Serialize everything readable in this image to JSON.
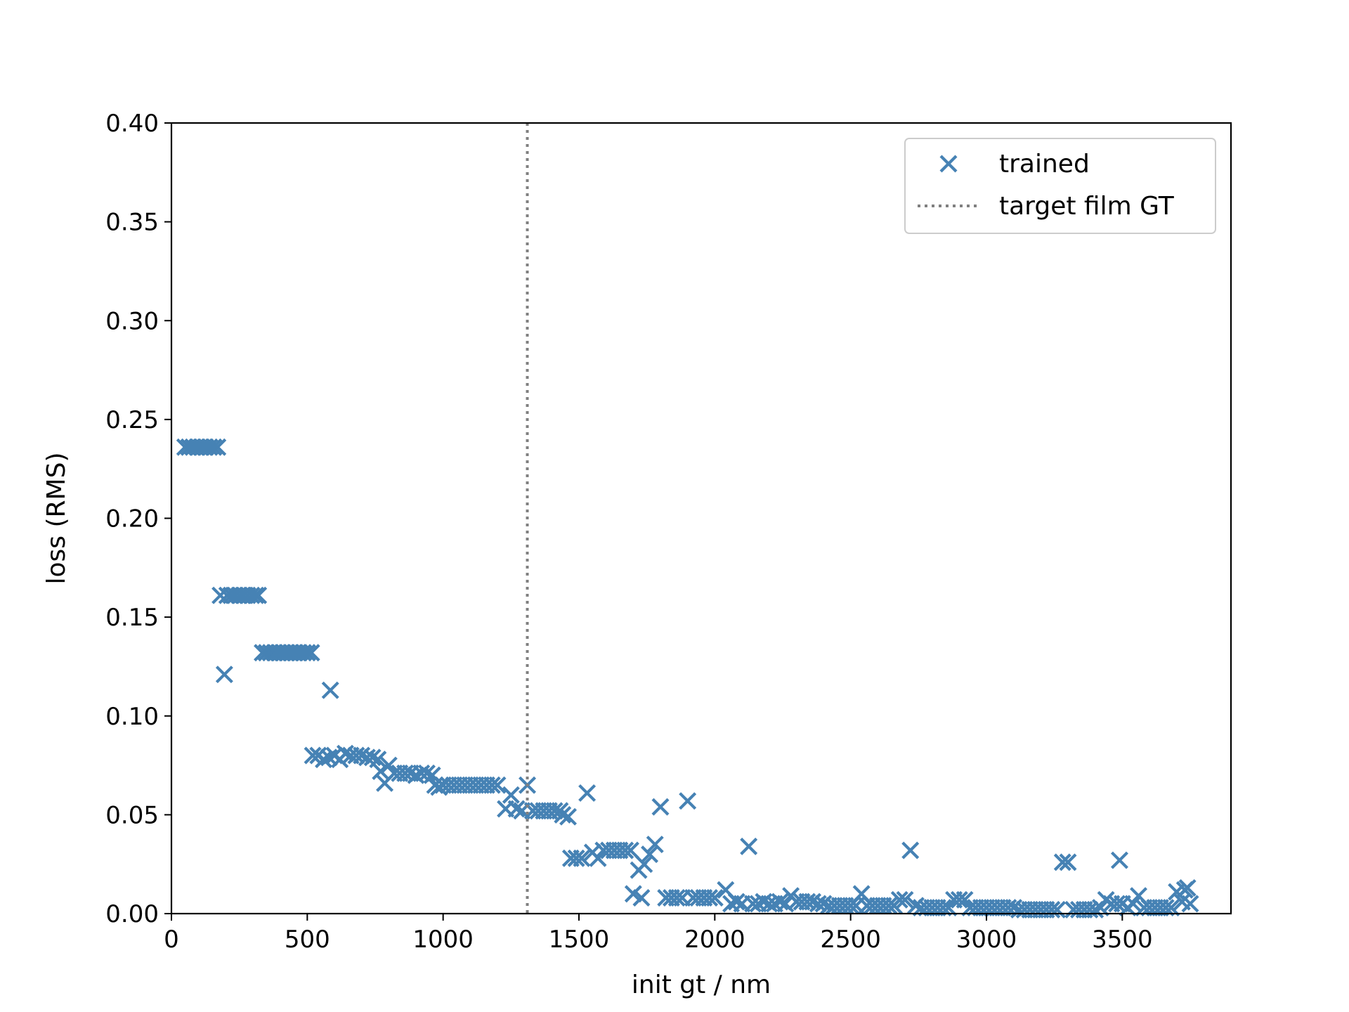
{
  "chart_data": {
    "type": "scatter",
    "title": "",
    "xlabel": "init gt / nm",
    "ylabel": "loss (RMS)",
    "xlim": [
      0,
      3900
    ],
    "ylim": [
      0,
      0.4
    ],
    "xticks": [
      0,
      500,
      1000,
      1500,
      2000,
      2500,
      3000,
      3500
    ],
    "xtick_labels": [
      "0",
      "500",
      "1000",
      "1500",
      "2000",
      "2500",
      "3000",
      "3500"
    ],
    "yticks": [
      0,
      0.05,
      0.1,
      0.15,
      0.2,
      0.25,
      0.3,
      0.35,
      0.4
    ],
    "ytick_labels": [
      "0.00",
      "0.05",
      "0.10",
      "0.15",
      "0.20",
      "0.25",
      "0.30",
      "0.35",
      "0.40"
    ],
    "grid": false,
    "legend_position": "top-right",
    "legend": [
      "trained",
      "target film GT"
    ],
    "series": [
      {
        "name": "trained",
        "marker": "x",
        "color": "#4682b4",
        "points": [
          [
            50,
            0.236
          ],
          [
            65,
            0.236
          ],
          [
            80,
            0.236
          ],
          [
            95,
            0.236
          ],
          [
            110,
            0.236
          ],
          [
            125,
            0.236
          ],
          [
            140,
            0.236
          ],
          [
            155,
            0.236
          ],
          [
            170,
            0.236
          ],
          [
            180,
            0.161
          ],
          [
            195,
            0.121
          ],
          [
            205,
            0.161
          ],
          [
            220,
            0.161
          ],
          [
            235,
            0.161
          ],
          [
            250,
            0.161
          ],
          [
            265,
            0.161
          ],
          [
            280,
            0.161
          ],
          [
            295,
            0.161
          ],
          [
            310,
            0.161
          ],
          [
            320,
            0.161
          ],
          [
            335,
            0.132
          ],
          [
            350,
            0.132
          ],
          [
            365,
            0.132
          ],
          [
            380,
            0.132
          ],
          [
            395,
            0.132
          ],
          [
            410,
            0.132
          ],
          [
            425,
            0.132
          ],
          [
            440,
            0.132
          ],
          [
            455,
            0.132
          ],
          [
            470,
            0.132
          ],
          [
            485,
            0.132
          ],
          [
            500,
            0.132
          ],
          [
            515,
            0.132
          ],
          [
            520,
            0.08
          ],
          [
            540,
            0.08
          ],
          [
            560,
            0.078
          ],
          [
            580,
            0.079
          ],
          [
            585,
            0.113
          ],
          [
            600,
            0.08
          ],
          [
            620,
            0.078
          ],
          [
            640,
            0.081
          ],
          [
            660,
            0.08
          ],
          [
            680,
            0.08
          ],
          [
            700,
            0.08
          ],
          [
            720,
            0.079
          ],
          [
            740,
            0.079
          ],
          [
            760,
            0.078
          ],
          [
            770,
            0.072
          ],
          [
            785,
            0.066
          ],
          [
            800,
            0.075
          ],
          [
            820,
            0.071
          ],
          [
            840,
            0.071
          ],
          [
            860,
            0.071
          ],
          [
            880,
            0.071
          ],
          [
            900,
            0.07
          ],
          [
            920,
            0.071
          ],
          [
            940,
            0.071
          ],
          [
            960,
            0.07
          ],
          [
            970,
            0.065
          ],
          [
            985,
            0.064
          ],
          [
            1000,
            0.065
          ],
          [
            1020,
            0.065
          ],
          [
            1040,
            0.065
          ],
          [
            1060,
            0.065
          ],
          [
            1080,
            0.065
          ],
          [
            1100,
            0.065
          ],
          [
            1120,
            0.065
          ],
          [
            1140,
            0.065
          ],
          [
            1160,
            0.065
          ],
          [
            1180,
            0.065
          ],
          [
            1200,
            0.065
          ],
          [
            1230,
            0.053
          ],
          [
            1250,
            0.06
          ],
          [
            1270,
            0.053
          ],
          [
            1290,
            0.052
          ],
          [
            1310,
            0.065
          ],
          [
            1330,
            0.052
          ],
          [
            1350,
            0.052
          ],
          [
            1370,
            0.052
          ],
          [
            1390,
            0.052
          ],
          [
            1410,
            0.052
          ],
          [
            1430,
            0.052
          ],
          [
            1440,
            0.05
          ],
          [
            1460,
            0.049
          ],
          [
            1470,
            0.028
          ],
          [
            1490,
            0.028
          ],
          [
            1510,
            0.028
          ],
          [
            1530,
            0.061
          ],
          [
            1550,
            0.031
          ],
          [
            1570,
            0.028
          ],
          [
            1590,
            0.032
          ],
          [
            1610,
            0.032
          ],
          [
            1630,
            0.032
          ],
          [
            1650,
            0.032
          ],
          [
            1670,
            0.032
          ],
          [
            1690,
            0.032
          ],
          [
            1700,
            0.01
          ],
          [
            1720,
            0.022
          ],
          [
            1730,
            0.008
          ],
          [
            1740,
            0.025
          ],
          [
            1760,
            0.03
          ],
          [
            1780,
            0.035
          ],
          [
            1800,
            0.054
          ],
          [
            1820,
            0.008
          ],
          [
            1840,
            0.008
          ],
          [
            1860,
            0.008
          ],
          [
            1880,
            0.008
          ],
          [
            1900,
            0.057
          ],
          [
            1920,
            0.008
          ],
          [
            1940,
            0.008
          ],
          [
            1960,
            0.008
          ],
          [
            1980,
            0.008
          ],
          [
            2000,
            0.008
          ],
          [
            2040,
            0.012
          ],
          [
            2060,
            0.005
          ],
          [
            2080,
            0.006
          ],
          [
            2100,
            0.005
          ],
          [
            2125,
            0.034
          ],
          [
            2140,
            0.005
          ],
          [
            2160,
            0.005
          ],
          [
            2180,
            0.006
          ],
          [
            2200,
            0.005
          ],
          [
            2220,
            0.005
          ],
          [
            2240,
            0.006
          ],
          [
            2260,
            0.005
          ],
          [
            2280,
            0.009
          ],
          [
            2300,
            0.006
          ],
          [
            2320,
            0.006
          ],
          [
            2340,
            0.006
          ],
          [
            2360,
            0.006
          ],
          [
            2380,
            0.005
          ],
          [
            2400,
            0.005
          ],
          [
            2420,
            0.004
          ],
          [
            2440,
            0.004
          ],
          [
            2460,
            0.004
          ],
          [
            2480,
            0.004
          ],
          [
            2500,
            0.004
          ],
          [
            2520,
            0.004
          ],
          [
            2540,
            0.01
          ],
          [
            2560,
            0.004
          ],
          [
            2580,
            0.004
          ],
          [
            2600,
            0.004
          ],
          [
            2620,
            0.004
          ],
          [
            2640,
            0.004
          ],
          [
            2660,
            0.004
          ],
          [
            2680,
            0.007
          ],
          [
            2700,
            0.007
          ],
          [
            2720,
            0.032
          ],
          [
            2740,
            0.004
          ],
          [
            2760,
            0.003
          ],
          [
            2780,
            0.003
          ],
          [
            2800,
            0.003
          ],
          [
            2820,
            0.003
          ],
          [
            2840,
            0.003
          ],
          [
            2860,
            0.003
          ],
          [
            2880,
            0.007
          ],
          [
            2900,
            0.007
          ],
          [
            2920,
            0.007
          ],
          [
            2940,
            0.003
          ],
          [
            2960,
            0.003
          ],
          [
            2980,
            0.003
          ],
          [
            3000,
            0.003
          ],
          [
            3020,
            0.003
          ],
          [
            3040,
            0.003
          ],
          [
            3060,
            0.003
          ],
          [
            3080,
            0.003
          ],
          [
            3100,
            0.003
          ],
          [
            3120,
            0.002
          ],
          [
            3140,
            0.002
          ],
          [
            3160,
            0.002
          ],
          [
            3180,
            0.002
          ],
          [
            3200,
            0.002
          ],
          [
            3220,
            0.002
          ],
          [
            3240,
            0.002
          ],
          [
            3260,
            0.002
          ],
          [
            3280,
            0.026
          ],
          [
            3300,
            0.026
          ],
          [
            3320,
            0.002
          ],
          [
            3340,
            0.002
          ],
          [
            3360,
            0.002
          ],
          [
            3380,
            0.002
          ],
          [
            3400,
            0.002
          ],
          [
            3420,
            0.003
          ],
          [
            3440,
            0.007
          ],
          [
            3460,
            0.005
          ],
          [
            3480,
            0.005
          ],
          [
            3490,
            0.027
          ],
          [
            3500,
            0.005
          ],
          [
            3520,
            0.003
          ],
          [
            3540,
            0.005
          ],
          [
            3560,
            0.009
          ],
          [
            3580,
            0.003
          ],
          [
            3600,
            0.003
          ],
          [
            3620,
            0.003
          ],
          [
            3640,
            0.003
          ],
          [
            3660,
            0.003
          ],
          [
            3680,
            0.003
          ],
          [
            3700,
            0.011
          ],
          [
            3720,
            0.006
          ],
          [
            3730,
            0.012
          ],
          [
            3740,
            0.013
          ],
          [
            3750,
            0.005
          ]
        ]
      },
      {
        "name": "target film GT",
        "type": "vline",
        "style": "dotted",
        "color": "#808080",
        "x": 1310
      }
    ]
  }
}
